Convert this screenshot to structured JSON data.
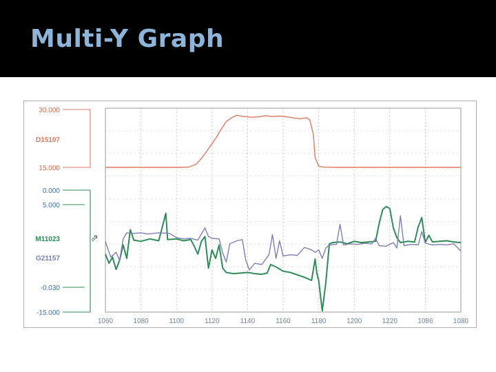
{
  "slide": {
    "title": "Multi-Y Graph"
  },
  "chart_data": {
    "type": "line",
    "title": "",
    "x_ticks": [
      "1060",
      "1080",
      "1100",
      "1120",
      "1140",
      "1160",
      "1180",
      "1200",
      "1220",
      "1086",
      "1080"
    ],
    "x_range": [
      1060,
      1260
    ],
    "panels": [
      {
        "axis_ticks": [
          "30.000",
          "15.000"
        ],
        "axis_range": [
          15,
          30
        ],
        "series": [
          {
            "name": "D15107",
            "color": "#e07a5f",
            "points": [
              [
                1060,
                15.0
              ],
              [
                1100,
                15.0
              ],
              [
                1107,
                15.1
              ],
              [
                1111,
                15.8
              ],
              [
                1114,
                17.3
              ],
              [
                1117,
                19.2
              ],
              [
                1119,
                20.5
              ],
              [
                1122,
                22.5
              ],
              [
                1125,
                24.8
              ],
              [
                1128,
                26.9
              ],
              [
                1131,
                27.9
              ],
              [
                1134,
                28.5
              ],
              [
                1138,
                28.2
              ],
              [
                1142,
                28.0
              ],
              [
                1146,
                28.1
              ],
              [
                1150,
                28.4
              ],
              [
                1154,
                28.2
              ],
              [
                1158,
                28.3
              ],
              [
                1162,
                28.1
              ],
              [
                1166,
                27.8
              ],
              [
                1170,
                27.6
              ],
              [
                1173,
                27.9
              ],
              [
                1175,
                27.3
              ],
              [
                1177,
                23.5
              ],
              [
                1178,
                17.5
              ],
              [
                1180,
                15.4
              ],
              [
                1182,
                15.1
              ],
              [
                1190,
                15.0
              ],
              [
                1260,
                15.0
              ]
            ]
          }
        ]
      },
      {
        "axis_ticks": [
          "0.000",
          "5.000",
          "-0.030",
          "-15.000"
        ],
        "axis_range": [
          -15,
          5
        ],
        "series": [
          {
            "name": "M11023",
            "color": "#2e8b57",
            "points": [
              [
                1060,
                -5.5
              ],
              [
                1062,
                -7.0
              ],
              [
                1064,
                -6.0
              ],
              [
                1066,
                -8.0
              ],
              [
                1068,
                -6.5
              ],
              [
                1070,
                -4.0
              ],
              [
                1072,
                -6.2
              ],
              [
                1074,
                -1.5
              ],
              [
                1076,
                -3.2
              ],
              [
                1080,
                -3.4
              ],
              [
                1085,
                -3.0
              ],
              [
                1090,
                -3.3
              ],
              [
                1094,
                1.2
              ],
              [
                1095,
                -3.1
              ],
              [
                1100,
                -3.0
              ],
              [
                1104,
                -3.3
              ],
              [
                1108,
                -3.1
              ],
              [
                1110,
                -4.2
              ],
              [
                1112,
                -5.5
              ],
              [
                1114,
                -3.4
              ],
              [
                1116,
                -2.6
              ],
              [
                1118,
                -7.8
              ],
              [
                1120,
                -4.8
              ],
              [
                1122,
                -6.2
              ],
              [
                1124,
                -4.0
              ],
              [
                1126,
                -7.8
              ],
              [
                1128,
                -8.5
              ],
              [
                1132,
                -8.7
              ],
              [
                1136,
                -8.6
              ],
              [
                1140,
                -8.5
              ],
              [
                1144,
                -8.7
              ],
              [
                1148,
                -8.8
              ],
              [
                1151,
                -8.6
              ],
              [
                1153,
                -7.2
              ],
              [
                1156,
                -7.6
              ],
              [
                1160,
                -8.3
              ],
              [
                1164,
                -8.5
              ],
              [
                1168,
                -8.9
              ],
              [
                1172,
                -9.3
              ],
              [
                1176,
                -9.8
              ],
              [
                1178,
                -6.3
              ],
              [
                1179,
                -8.7
              ],
              [
                1180,
                -9.8
              ],
              [
                1182,
                -14.8
              ],
              [
                1184,
                -10.2
              ],
              [
                1186,
                -3.8
              ],
              [
                1188,
                -3.6
              ],
              [
                1192,
                -3.5
              ],
              [
                1196,
                -3.8
              ],
              [
                1200,
                -3.4
              ],
              [
                1204,
                -3.6
              ],
              [
                1208,
                -3.5
              ],
              [
                1212,
                -3.4
              ],
              [
                1214,
                -0.5
              ],
              [
                1216,
                1.8
              ],
              [
                1218,
                2.3
              ],
              [
                1220,
                2.0
              ],
              [
                1222,
                -1.2
              ],
              [
                1224,
                -2.8
              ],
              [
                1226,
                -3.6
              ],
              [
                1230,
                -3.4
              ],
              [
                1234,
                -3.5
              ],
              [
                1236,
                -1.0
              ],
              [
                1238,
                0.5
              ],
              [
                1240,
                -3.6
              ],
              [
                1242,
                -2.4
              ],
              [
                1244,
                -3.5
              ],
              [
                1248,
                -3.4
              ],
              [
                1252,
                -3.3
              ],
              [
                1256,
                -3.5
              ],
              [
                1260,
                -3.6
              ]
            ]
          },
          {
            "name": "G21157",
            "color": "#7b7fb5",
            "points": [
              [
                1060,
                -3.4
              ],
              [
                1063,
                -6.0
              ],
              [
                1066,
                -5.2
              ],
              [
                1068,
                -6.5
              ],
              [
                1070,
                -3.0
              ],
              [
                1072,
                -2.0
              ],
              [
                1076,
                -2.1
              ],
              [
                1080,
                -2.0
              ],
              [
                1084,
                -2.2
              ],
              [
                1090,
                -2.0
              ],
              [
                1096,
                -2.1
              ],
              [
                1100,
                -2.8
              ],
              [
                1104,
                -3.0
              ],
              [
                1108,
                -2.9
              ],
              [
                1112,
                -3.2
              ],
              [
                1116,
                -1.2
              ],
              [
                1118,
                -2.6
              ],
              [
                1120,
                -2.9
              ],
              [
                1124,
                -3.0
              ],
              [
                1126,
                -5.3
              ],
              [
                1128,
                -6.8
              ],
              [
                1130,
                -3.8
              ],
              [
                1134,
                -3.3
              ],
              [
                1137,
                -3.1
              ],
              [
                1139,
                -6.5
              ],
              [
                1141,
                -8.1
              ],
              [
                1144,
                -7.0
              ],
              [
                1148,
                -7.2
              ],
              [
                1152,
                -5.6
              ],
              [
                1154,
                -2.3
              ],
              [
                1156,
                -6.2
              ],
              [
                1158,
                -3.3
              ],
              [
                1160,
                -5.8
              ],
              [
                1164,
                -5.6
              ],
              [
                1168,
                -5.7
              ],
              [
                1172,
                -4.4
              ],
              [
                1176,
                -4.8
              ],
              [
                1178,
                -5.2
              ],
              [
                1180,
                -4.8
              ],
              [
                1182,
                -6.2
              ],
              [
                1184,
                -4.5
              ],
              [
                1186,
                -4.0
              ],
              [
                1190,
                -3.9
              ],
              [
                1192,
                -0.6
              ],
              [
                1194,
                -4.0
              ],
              [
                1198,
                -3.8
              ],
              [
                1202,
                -3.9
              ],
              [
                1206,
                -3.7
              ],
              [
                1210,
                -3.8
              ],
              [
                1212,
                -2.9
              ],
              [
                1214,
                -4.1
              ],
              [
                1218,
                -4.2
              ],
              [
                1222,
                -3.6
              ],
              [
                1224,
                -4.5
              ],
              [
                1226,
                0.8
              ],
              [
                1228,
                -4.1
              ],
              [
                1232,
                -3.9
              ],
              [
                1236,
                -4.0
              ],
              [
                1238,
                -1.8
              ],
              [
                1240,
                -3.7
              ],
              [
                1244,
                -4.0
              ],
              [
                1248,
                -3.9
              ],
              [
                1252,
                -4.0
              ],
              [
                1256,
                -3.8
              ],
              [
                1260,
                -5.0
              ]
            ]
          }
        ]
      }
    ],
    "grid": true,
    "legend": "left-axis labels"
  }
}
